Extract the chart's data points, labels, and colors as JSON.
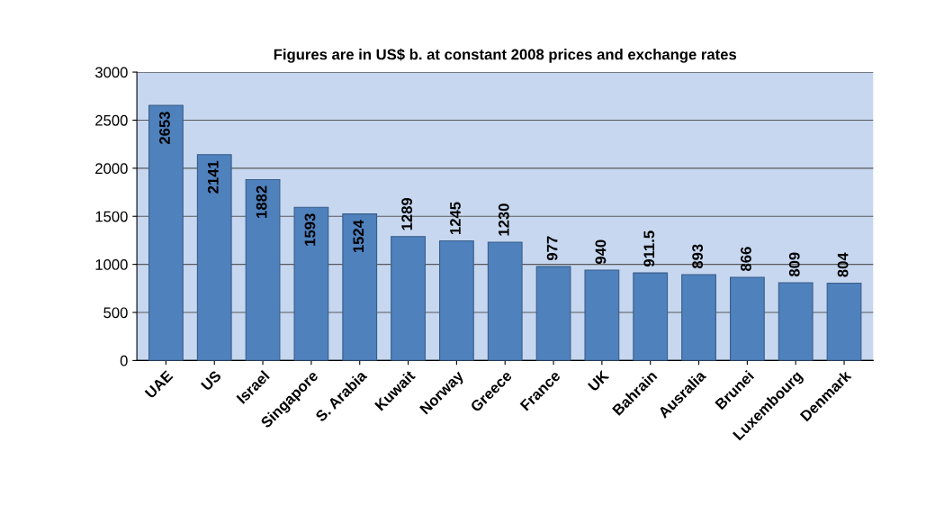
{
  "chart_data": {
    "type": "bar",
    "title": "Figures are in US$ b. at constant 2008 prices and exchange rates",
    "categories": [
      "UAE",
      "US",
      "Israel",
      "Singapore",
      "S. Arabia",
      "Kuwait",
      "Norway",
      "Greece",
      "France",
      "UK",
      "Bahrain",
      "Ausralia",
      "Brunei",
      "Luxembourg",
      "Denmark"
    ],
    "values": [
      2653,
      2141,
      1882,
      1593,
      1524,
      1289,
      1245,
      1230,
      977,
      940,
      911.5,
      893,
      866,
      809,
      804
    ],
    "color": "#4f81bd",
    "ylim": [
      0,
      3000
    ],
    "yticks": [
      0,
      500,
      1000,
      1500,
      2000,
      2500,
      3000
    ],
    "grid": "y",
    "data_labels": true
  }
}
